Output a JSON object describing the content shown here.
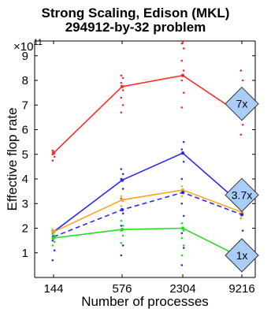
{
  "chart_data": {
    "type": "line",
    "title": "Strong Scaling, Edison (MKL)",
    "subtitle": "294912-by-32 problem",
    "xlabel": "Number of processes",
    "ylabel": "Effective flop rate",
    "y_exponent_label": "×10",
    "y_exponent_power": "11",
    "x": [
      "144",
      "576",
      "2304",
      "9216"
    ],
    "ylim": [
      0,
      9.6
    ],
    "yticks": [
      "1",
      "2",
      "3",
      "4",
      "5",
      "6",
      "7",
      "8",
      "9"
    ],
    "grid": false,
    "series": [
      {
        "color": "#ff2a2a",
        "style": "solid",
        "values": [
          5.05,
          7.75,
          8.2,
          6.6
        ],
        "scatter": [
          [
            4.75,
            4.9,
            5.0,
            5.1,
            5.15
          ],
          [
            6.7,
            7.0,
            7.3,
            7.6,
            7.9,
            8.1,
            8.2
          ],
          [
            6.9,
            7.5,
            8.0,
            8.4,
            8.8,
            9.3,
            9.5,
            9.6
          ],
          [
            5.8,
            6.2,
            6.6,
            7.0,
            7.5,
            8.0,
            8.4
          ]
        ]
      },
      {
        "color": "#2a2aee",
        "style": "solid",
        "values": [
          1.85,
          3.95,
          5.05,
          2.95
        ],
        "scatter": [
          [
            0.7,
            1.1,
            1.5,
            1.7,
            1.9
          ],
          [
            0.9,
            1.3,
            2.1,
            2.6,
            3.2,
            3.6,
            4.0,
            4.2,
            4.4
          ],
          [
            0.5,
            1.2,
            1.8,
            2.5,
            3.0,
            3.5,
            4.0,
            4.7,
            5.2,
            5.5
          ],
          [
            1.4,
            1.9,
            2.4,
            2.9,
            3.4,
            3.8
          ]
        ]
      },
      {
        "color": "#ffa420",
        "style": "solid",
        "values": [
          1.85,
          3.15,
          3.55,
          2.65
        ],
        "scatter": [
          [
            1.75,
            1.85,
            1.95
          ],
          [
            2.9,
            3.1,
            3.3
          ],
          [
            3.3,
            3.5,
            3.7
          ],
          [
            2.4,
            2.6,
            2.8
          ]
        ]
      },
      {
        "color": "#2a2aee",
        "style": "dashed",
        "values": [
          1.65,
          2.75,
          3.45,
          2.55
        ],
        "scatter": []
      },
      {
        "color": "#22dd22",
        "style": "solid",
        "values": [
          1.6,
          1.95,
          2.0,
          0.8
        ],
        "scatter": [
          [
            1.3,
            1.45,
            1.6,
            1.7,
            1.8
          ],
          [
            1.4,
            1.7,
            1.9,
            2.1,
            2.3
          ],
          [
            0.9,
            1.3,
            1.6,
            1.9,
            2.2
          ],
          [
            0.6,
            0.75,
            0.9,
            1.05
          ]
        ]
      }
    ],
    "annotations": [
      {
        "text": "7x",
        "y": 7.05
      },
      {
        "text": "3.7x",
        "y": 3.35
      },
      {
        "text": "1x",
        "y": 0.9
      }
    ]
  }
}
